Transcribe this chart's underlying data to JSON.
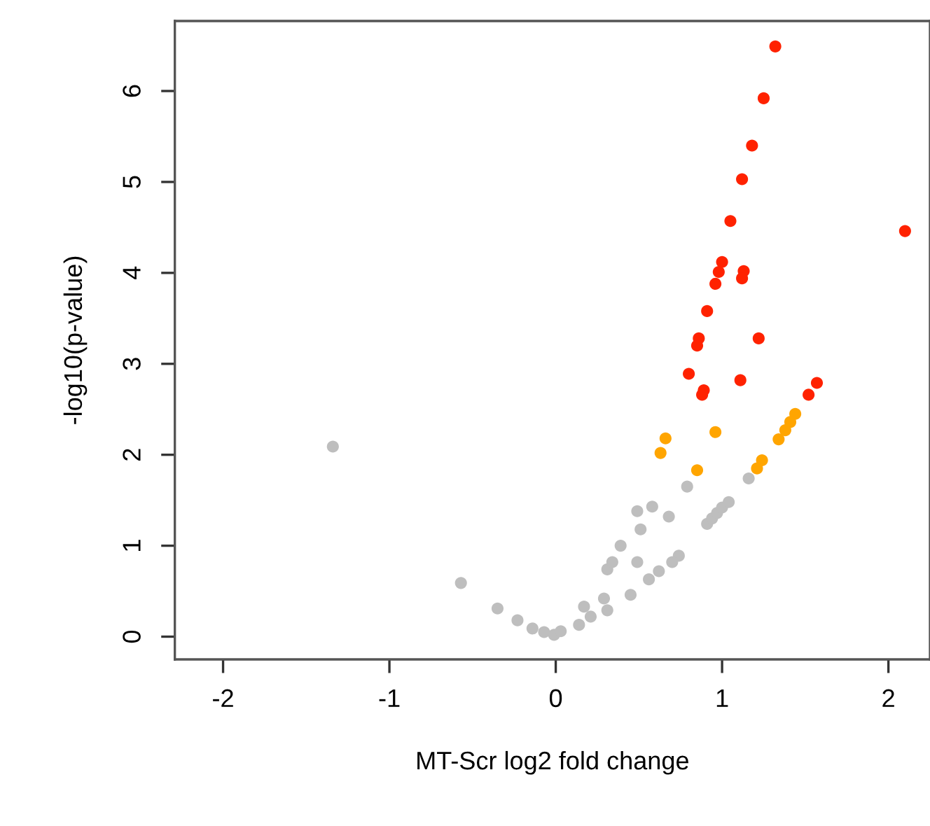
{
  "chart_data": {
    "type": "scatter",
    "xlabel": "MT-Scr log2 fold change",
    "ylabel": "-log10(p-value)",
    "xlim": [
      -2.29,
      2.25
    ],
    "ylim": [
      -0.25,
      6.77
    ],
    "xticks": [
      -2,
      -1,
      0,
      1,
      2
    ],
    "yticks": [
      0,
      1,
      2,
      3,
      4,
      5,
      6
    ],
    "grid": false,
    "legend": false,
    "marker": "circle",
    "series": [
      {
        "color": "#ff2200",
        "x": [
          1.32,
          1.25,
          1.18,
          1.12,
          1.05,
          2.1,
          1.0,
          0.98,
          0.96,
          1.13,
          1.12,
          0.91,
          0.86,
          0.85,
          1.22,
          0.8,
          0.89,
          0.88,
          1.11,
          1.57,
          1.52
        ],
        "values": [
          6.49,
          5.92,
          5.4,
          5.03,
          4.57,
          4.46,
          4.12,
          4.01,
          3.88,
          4.02,
          3.94,
          3.58,
          3.28,
          3.2,
          3.28,
          2.89,
          2.71,
          2.66,
          2.82,
          2.79,
          2.66
        ]
      },
      {
        "color": "#ffa500",
        "x": [
          0.66,
          0.63,
          0.96,
          0.85,
          1.44,
          1.41,
          1.38,
          1.34,
          1.24,
          1.21
        ],
        "values": [
          2.18,
          2.02,
          2.25,
          1.83,
          2.45,
          2.36,
          2.27,
          2.17,
          1.94,
          1.85
        ]
      },
      {
        "color": "#bebebe",
        "x": [
          -1.34,
          -0.57,
          -0.35,
          -0.23,
          -0.14,
          -0.07,
          -0.01,
          0.03,
          0.14,
          0.17,
          0.21,
          0.29,
          0.31,
          0.45,
          0.56,
          0.62,
          0.74,
          0.7,
          0.31,
          0.34,
          0.39,
          0.49,
          0.51,
          0.49,
          0.58,
          0.68,
          0.79,
          0.91,
          0.94,
          0.97,
          1.0,
          1.04,
          1.16
        ],
        "values": [
          2.09,
          0.59,
          0.31,
          0.18,
          0.09,
          0.05,
          0.02,
          0.06,
          0.13,
          0.33,
          0.22,
          0.42,
          0.29,
          0.46,
          0.63,
          0.72,
          0.89,
          0.82,
          0.74,
          0.82,
          1.0,
          0.82,
          1.18,
          1.38,
          1.43,
          1.32,
          1.65,
          1.24,
          1.3,
          1.36,
          1.42,
          1.48,
          1.74
        ]
      }
    ]
  }
}
